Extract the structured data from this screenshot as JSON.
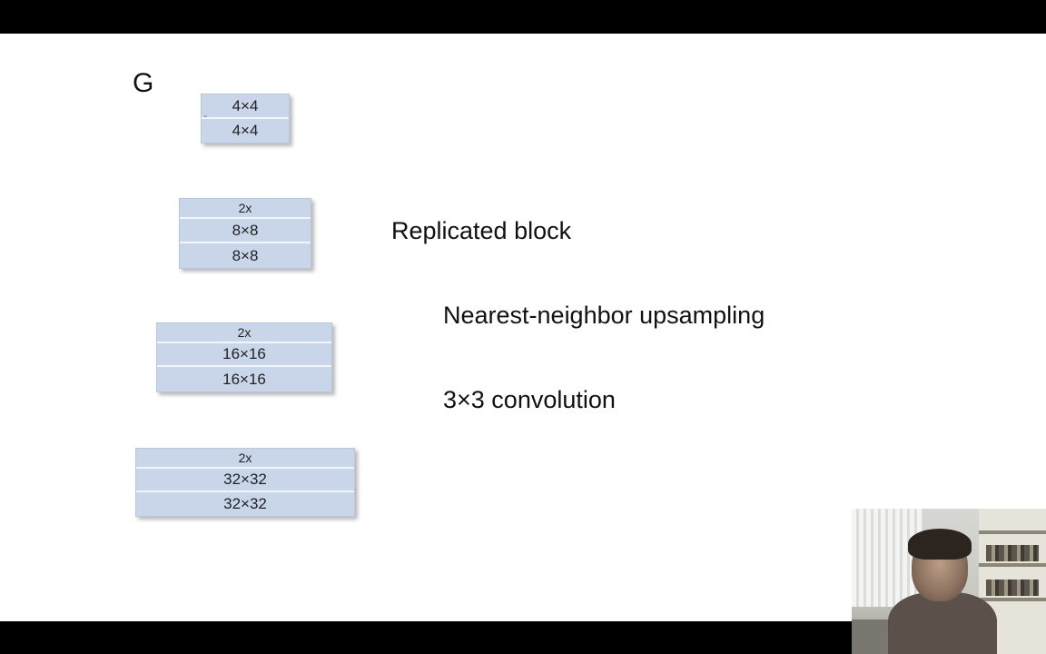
{
  "slide": {
    "label": "G",
    "legend": {
      "replicated": "Replicated block",
      "upsampling": "Nearest-neighbor upsampling",
      "convolution": "3×3 convolution"
    },
    "blocks": [
      {
        "rows": [
          {
            "text": "4×4"
          },
          {
            "text": "4×4"
          }
        ],
        "marker": "*"
      },
      {
        "rows": [
          {
            "text": "2x"
          },
          {
            "text": "8×8"
          },
          {
            "text": "8×8"
          }
        ]
      },
      {
        "rows": [
          {
            "text": "2x"
          },
          {
            "text": "16×16"
          },
          {
            "text": "16×16"
          }
        ]
      },
      {
        "rows": [
          {
            "text": "2x"
          },
          {
            "text": "32×32"
          },
          {
            "text": "32×32"
          }
        ]
      }
    ],
    "colors": {
      "block_fill": "#c9d6ea",
      "background": "#ffffff",
      "letterbox": "#000000"
    }
  },
  "webcam": {
    "icon": "presenter-webcam-feed"
  }
}
